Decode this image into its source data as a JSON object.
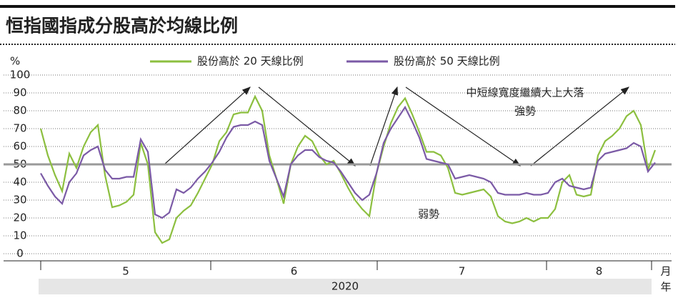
{
  "chart_data": {
    "type": "line",
    "title": "恒指國指成分股高於均線比例",
    "y_unit": "%",
    "x_unit": "月",
    "year_unit": "年",
    "year": "2020",
    "months": [
      "5",
      "6",
      "7",
      "8"
    ],
    "month_ticks": [
      0,
      23.8,
      47.1,
      70.8,
      85.5
    ],
    "annotations": [
      "中短線寬度繼續大上大落",
      "強勢",
      "弱勢"
    ],
    "hline": 50,
    "xlim": [
      0,
      86
    ],
    "ylim": [
      0,
      100
    ],
    "yticks": [
      0,
      10,
      20,
      30,
      40,
      50,
      60,
      70,
      80,
      90,
      100
    ],
    "grid": true,
    "x": [
      0,
      1,
      2,
      3,
      4,
      5,
      6,
      7,
      8,
      9,
      10,
      11,
      12,
      13,
      14,
      15,
      16,
      17,
      18,
      19,
      20,
      21,
      22,
      23,
      24,
      25,
      26,
      27,
      28,
      29,
      30,
      31,
      32,
      33,
      34,
      35,
      36,
      37,
      38,
      39,
      40,
      41,
      42,
      43,
      44,
      45,
      46,
      47,
      48,
      49,
      50,
      51,
      52,
      53,
      54,
      55,
      56,
      57,
      58,
      59,
      60,
      61,
      62,
      63,
      64,
      65,
      66,
      67,
      68,
      69,
      70,
      71,
      72,
      73,
      74,
      75,
      76,
      77,
      78,
      79,
      80,
      81,
      82,
      83,
      84,
      85,
      86
    ],
    "series": [
      {
        "name": "股份高於 20 天線比例",
        "color": "#8cbf3f",
        "values": [
          70,
          55,
          44,
          35,
          56,
          48,
          60,
          68,
          72,
          44,
          26,
          27,
          29,
          33,
          62,
          50,
          12,
          6,
          8,
          20,
          24,
          27,
          34,
          42,
          50,
          63,
          68,
          78,
          79,
          79,
          88,
          80,
          55,
          42,
          28,
          50,
          60,
          66,
          63,
          55,
          50,
          52,
          45,
          37,
          30,
          25,
          21,
          45,
          60,
          73,
          82,
          87,
          78,
          68,
          57,
          57,
          55,
          48,
          34,
          33,
          34,
          35,
          36,
          32,
          21,
          18,
          17,
          18,
          20,
          18,
          20,
          20,
          25,
          40,
          44,
          33,
          32,
          33,
          55,
          63,
          66,
          70,
          77,
          80,
          72,
          47,
          58
        ]
      },
      {
        "name": "股份高於 50 天線比例",
        "color": "#7b5aa6",
        "values": [
          45,
          38,
          32,
          28,
          40,
          45,
          55,
          58,
          60,
          47,
          42,
          42,
          43,
          43,
          64,
          57,
          22,
          20,
          23,
          36,
          34,
          37,
          42,
          46,
          51,
          57,
          65,
          71,
          72,
          72,
          74,
          72,
          52,
          42,
          32,
          50,
          55,
          58,
          58,
          54,
          52,
          51,
          46,
          40,
          34,
          30,
          33,
          45,
          62,
          70,
          76,
          82,
          74,
          65,
          53,
          52,
          51,
          50,
          42,
          43,
          44,
          43,
          42,
          40,
          34,
          33,
          33,
          33,
          34,
          33,
          33,
          34,
          40,
          42,
          38,
          37,
          36,
          37,
          52,
          56,
          57,
          58,
          59,
          62,
          60,
          46,
          51
        ]
      }
    ]
  }
}
